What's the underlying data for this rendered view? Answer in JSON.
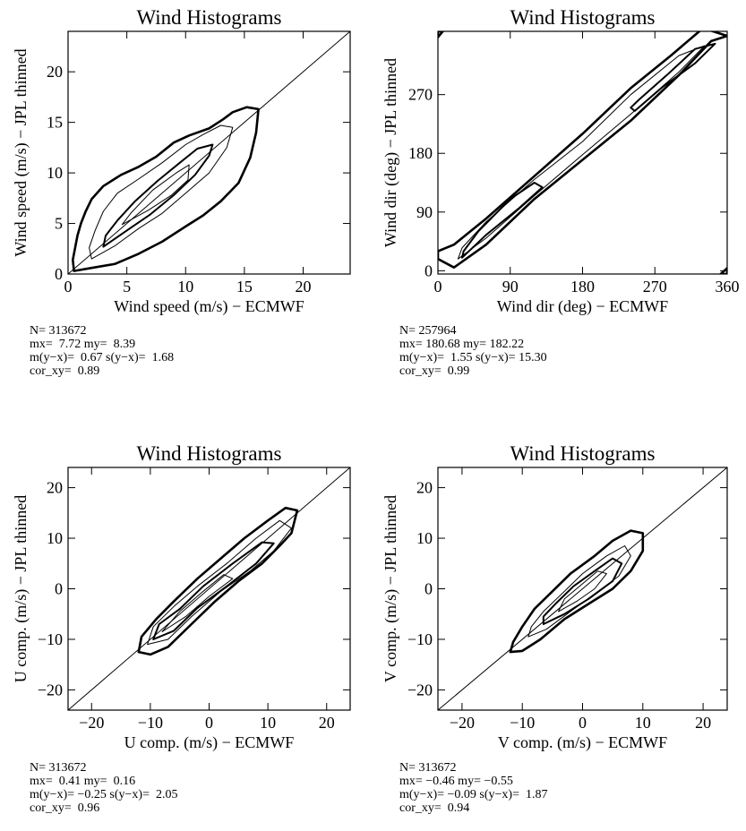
{
  "colors": {
    "ink": "#000000",
    "background": "#ffffff"
  },
  "chart_data": [
    {
      "type": "contour",
      "title": "Wind Histograms",
      "xlabel": "Wind speed (m/s)  − ECMWF",
      "ylabel": "Wind speed (m/s)  − JPL thinned",
      "xlim": [
        0,
        24
      ],
      "ylim": [
        0,
        24
      ],
      "xticks": [
        0,
        5,
        10,
        15,
        20
      ],
      "xticklabels": [
        "0",
        "5",
        "10",
        "15",
        "20"
      ],
      "yticks": [
        0,
        5,
        10,
        15,
        20
      ],
      "yticklabels": [
        "0",
        "5",
        "10",
        "15",
        "20"
      ],
      "diagonal_line": [
        [
          0,
          0
        ],
        [
          24,
          24
        ]
      ],
      "contours": [
        {
          "level": "outer",
          "path": [
            [
              0.5,
              0.3
            ],
            [
              2,
              0.6
            ],
            [
              4,
              1.0
            ],
            [
              6,
              2.0
            ],
            [
              8,
              3.2
            ],
            [
              10,
              4.7
            ],
            [
              11.5,
              5.8
            ],
            [
              13,
              7.2
            ],
            [
              14.5,
              9
            ],
            [
              15.5,
              11.5
            ],
            [
              16,
              14
            ],
            [
              16.2,
              16.3
            ],
            [
              15.2,
              16.5
            ],
            [
              14,
              16
            ],
            [
              13.2,
              15.3
            ],
            [
              12,
              14.4
            ],
            [
              10.3,
              13.7
            ],
            [
              9,
              13
            ],
            [
              7.5,
              11.6
            ],
            [
              6,
              10.6
            ],
            [
              4.5,
              9.8
            ],
            [
              3,
              8.7
            ],
            [
              2,
              7.4
            ],
            [
              1.5,
              6.2
            ],
            [
              1.1,
              5
            ],
            [
              0.8,
              3.8
            ],
            [
              0.6,
              2.6
            ],
            [
              0.4,
              1.4
            ]
          ]
        },
        {
          "level": "mid",
          "path": [
            [
              2,
              1.5
            ],
            [
              4,
              2.8
            ],
            [
              6,
              4.5
            ],
            [
              8,
              6
            ],
            [
              10,
              8
            ],
            [
              12,
              10
            ],
            [
              13.5,
              12.5
            ],
            [
              14,
              14.5
            ],
            [
              13,
              14.7
            ],
            [
              11.5,
              13.8
            ],
            [
              10,
              12.8
            ],
            [
              8,
              11
            ],
            [
              6,
              9.4
            ],
            [
              4.2,
              8
            ],
            [
              3,
              6.2
            ],
            [
              2.3,
              4.3
            ],
            [
              1.8,
              2.6
            ]
          ]
        },
        {
          "level": "inner",
          "path": [
            [
              3,
              2.7
            ],
            [
              5,
              4.3
            ],
            [
              7,
              5.9
            ],
            [
              9,
              7.8
            ],
            [
              10.8,
              9.8
            ],
            [
              12,
              11.7
            ],
            [
              12.3,
              12.8
            ],
            [
              11,
              12.4
            ],
            [
              9.5,
              11
            ],
            [
              7.6,
              9.2
            ],
            [
              5.7,
              7.2
            ],
            [
              4.2,
              5.3
            ],
            [
              3.2,
              3.8
            ]
          ]
        },
        {
          "level": "core",
          "path": [
            [
              4.6,
              4.9
            ],
            [
              6.8,
              6.3
            ],
            [
              8.8,
              7.8
            ],
            [
              10.2,
              9.3
            ],
            [
              10.3,
              10.8
            ],
            [
              9.2,
              10
            ],
            [
              7.2,
              8.3
            ],
            [
              5.4,
              6.1
            ]
          ]
        }
      ],
      "stats": [
        "N= 313672",
        "mx=  7.72 my=  8.39",
        "m(y−x)=  0.67 s(y−x)=  1.68",
        "cor_xy=  0.89"
      ]
    },
    {
      "type": "contour",
      "title": "Wind Histograms",
      "xlabel": "Wind dir (deg)  − ECMWF",
      "ylabel": "Wind dir (deg)  − JPL thinned",
      "xlim": [
        0,
        360
      ],
      "ylim": [
        -5,
        367
      ],
      "xticks": [
        0,
        90,
        180,
        270,
        360
      ],
      "xticklabels": [
        "0",
        "90",
        "180",
        "270",
        "360"
      ],
      "yticks": [
        0,
        90,
        180,
        270
      ],
      "yticklabels": [
        "0",
        "90",
        "180",
        "270"
      ],
      "diagonal_line": null,
      "contours": [
        {
          "level": "outer",
          "path": [
            [
              0,
              18
            ],
            [
              20,
              5
            ],
            [
              60,
              40
            ],
            [
              120,
              110
            ],
            [
              180,
              170
            ],
            [
              240,
              230
            ],
            [
              300,
              300
            ],
            [
              340,
              352
            ],
            [
              360,
              360
            ],
            [
              330,
              372
            ],
            [
              290,
              330
            ],
            [
              240,
              280
            ],
            [
              180,
              210
            ],
            [
              120,
              145
            ],
            [
              60,
              80
            ],
            [
              20,
              40
            ],
            [
              0,
              30
            ]
          ]
        },
        {
          "level": "mid",
          "path": [
            [
              25,
              18
            ],
            [
              60,
              50
            ],
            [
              120,
              115
            ],
            [
              180,
              178
            ],
            [
              240,
              240
            ],
            [
              300,
              305
            ],
            [
              332,
              345
            ],
            [
              300,
              330
            ],
            [
              240,
              270
            ],
            [
              180,
              198
            ],
            [
              120,
              140
            ],
            [
              60,
              75
            ],
            [
              30,
              35
            ]
          ]
        },
        {
          "level": "inner",
          "path": [
            [
              30,
              20
            ],
            [
              60,
              55
            ],
            [
              100,
              95
            ],
            [
              130,
              128
            ],
            [
              120,
              135
            ],
            [
              90,
              110
            ],
            [
              50,
              60
            ],
            [
              32,
              30
            ]
          ]
        },
        {
          "level": "inner2",
          "path": [
            [
              245,
              245
            ],
            [
              280,
              282
            ],
            [
              320,
              318
            ],
            [
              345,
              348
            ],
            [
              320,
              340
            ],
            [
              285,
              300
            ],
            [
              250,
              262
            ],
            [
              240,
              250
            ]
          ]
        },
        {
          "level": "corner",
          "path": [
            [
              0,
              358
            ],
            [
              6,
              367
            ],
            [
              0,
              367
            ]
          ]
        },
        {
          "level": "corner2",
          "path": [
            [
              352,
              -5
            ],
            [
              360,
              -5
            ],
            [
              360,
              4
            ]
          ]
        }
      ],
      "stats": [
        "N= 257964",
        "mx= 180.68 my= 182.22",
        "m(y−x)=  1.55 s(y−x)= 15.30",
        "cor_xy=  0.99"
      ]
    },
    {
      "type": "contour",
      "title": "Wind Histograms",
      "xlabel": "U comp. (m/s)  − ECMWF",
      "ylabel": "U comp. (m/s)  − JPL thinned",
      "xlim": [
        -24,
        24
      ],
      "ylim": [
        -24,
        24
      ],
      "xticks": [
        -20,
        -10,
        0,
        10,
        20
      ],
      "xticklabels": [
        "−20",
        "−10",
        "0",
        "10",
        "20"
      ],
      "yticks": [
        -20,
        -10,
        0,
        10,
        20
      ],
      "yticklabels": [
        "−20",
        "−10",
        "0",
        "10",
        "20"
      ],
      "diagonal_line": [
        [
          -24,
          -24
        ],
        [
          24,
          24
        ]
      ],
      "contours": [
        {
          "level": "outer",
          "path": [
            [
              -12,
              -12.5
            ],
            [
              -10,
              -13
            ],
            [
              -7,
              -11.5
            ],
            [
              -3,
              -7
            ],
            [
              1,
              -2.5
            ],
            [
              5,
              1.5
            ],
            [
              9,
              5
            ],
            [
              12,
              8.5
            ],
            [
              14,
              11
            ],
            [
              15,
              15.5
            ],
            [
              13,
              16
            ],
            [
              10,
              13.5
            ],
            [
              6,
              10
            ],
            [
              2,
              6
            ],
            [
              -2,
              2
            ],
            [
              -6,
              -2.5
            ],
            [
              -9,
              -6
            ],
            [
              -11.5,
              -9.5
            ]
          ]
        },
        {
          "level": "mid",
          "path": [
            [
              -10.5,
              -11
            ],
            [
              -7,
              -10
            ],
            [
              -3,
              -5.5
            ],
            [
              2,
              -0.5
            ],
            [
              7,
              3.5
            ],
            [
              11,
              7.5
            ],
            [
              14,
              12
            ],
            [
              12,
              13.5
            ],
            [
              8,
              10
            ],
            [
              3,
              5
            ],
            [
              -2,
              0.5
            ],
            [
              -6,
              -3.5
            ],
            [
              -9.5,
              -7.5
            ]
          ]
        },
        {
          "level": "inner",
          "path": [
            [
              -9.5,
              -10
            ],
            [
              -6,
              -8.3
            ],
            [
              -2,
              -3.8
            ],
            [
              3,
              0.5
            ],
            [
              8,
              5
            ],
            [
              11,
              9
            ],
            [
              9,
              9.2
            ],
            [
              4,
              5
            ],
            [
              -1,
              0.5
            ],
            [
              -5,
              -4
            ],
            [
              -8.5,
              -7
            ]
          ]
        },
        {
          "level": "core",
          "path": [
            [
              -8,
              -8.5
            ],
            [
              -4,
              -5.5
            ],
            [
              0,
              -1.5
            ],
            [
              4,
              2
            ],
            [
              2.5,
              2.8
            ],
            [
              -1,
              -0.5
            ],
            [
              -5,
              -4.5
            ]
          ]
        }
      ],
      "stats": [
        "N= 313672",
        "mx=  0.41 my=  0.16",
        "m(y−x)= −0.25 s(y−x)=  2.05",
        "cor_xy=  0.96"
      ]
    },
    {
      "type": "contour",
      "title": "Wind Histograms",
      "xlabel": "V comp. (m/s)  − ECMWF",
      "ylabel": "V comp. (m/s)  − JPL thinned",
      "xlim": [
        -24,
        24
      ],
      "ylim": [
        -24,
        24
      ],
      "xticks": [
        -20,
        -10,
        0,
        10,
        20
      ],
      "xticklabels": [
        "−20",
        "−10",
        "0",
        "10",
        "20"
      ],
      "yticks": [
        -20,
        -10,
        0,
        10,
        20
      ],
      "yticklabels": [
        "−20",
        "−10",
        "0",
        "10",
        "20"
      ],
      "diagonal_line": [
        [
          -24,
          -24
        ],
        [
          24,
          24
        ]
      ],
      "contours": [
        {
          "level": "outer",
          "path": [
            [
              -12,
              -12.5
            ],
            [
              -10,
              -12.3
            ],
            [
              -7,
              -10
            ],
            [
              -3,
              -6
            ],
            [
              1,
              -3
            ],
            [
              5,
              0
            ],
            [
              8,
              3.5
            ],
            [
              10,
              7.5
            ],
            [
              10,
              11
            ],
            [
              8,
              11.5
            ],
            [
              5,
              9.5
            ],
            [
              2,
              6.5
            ],
            [
              -2,
              3
            ],
            [
              -5,
              -0.5
            ],
            [
              -8,
              -4
            ],
            [
              -10,
              -7.5
            ],
            [
              -11.5,
              -10.5
            ]
          ]
        },
        {
          "level": "mid",
          "path": [
            [
              -9,
              -9.5
            ],
            [
              -6,
              -8
            ],
            [
              -2,
              -4.5
            ],
            [
              2,
              -1
            ],
            [
              6,
              2.5
            ],
            [
              8,
              6.5
            ],
            [
              7,
              8.5
            ],
            [
              4,
              6.5
            ],
            [
              0,
              3
            ],
            [
              -3,
              -0.5
            ],
            [
              -6.5,
              -4.5
            ],
            [
              -8.5,
              -7.5
            ]
          ]
        },
        {
          "level": "inner",
          "path": [
            [
              -6.5,
              -7
            ],
            [
              -3,
              -5
            ],
            [
              1,
              -2
            ],
            [
              5,
              1.5
            ],
            [
              6.5,
              5
            ],
            [
              5,
              6
            ],
            [
              2,
              3.5
            ],
            [
              -1.5,
              0.5
            ],
            [
              -4.5,
              -3
            ],
            [
              -6.5,
              -5.5
            ]
          ]
        },
        {
          "level": "core",
          "path": [
            [
              -4,
              -4.5
            ],
            [
              -1,
              -2.5
            ],
            [
              2,
              0
            ],
            [
              4,
              3
            ],
            [
              2.5,
              3.5
            ],
            [
              0,
              1
            ],
            [
              -3,
              -2
            ]
          ]
        }
      ],
      "stats": [
        "N= 313672",
        "mx= −0.46 my= −0.55",
        "m(y−x)= −0.09 s(y−x)=  1.87",
        "cor_xy=  0.94"
      ]
    }
  ]
}
